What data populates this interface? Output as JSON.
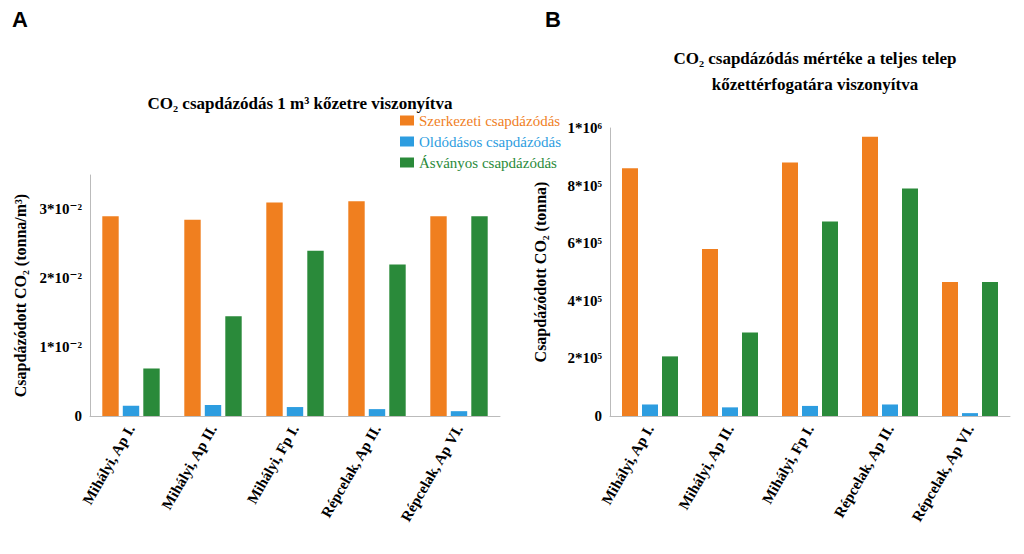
{
  "chart_data": [
    {
      "type": "bar",
      "annotations": [
        "A"
      ],
      "title": "CO₂ csapdázódás 1 m³ kőzetre viszonyítva",
      "y_label": "Csapdázódott CO₂ (tonna/m³)",
      "categories": [
        "Mihályi, Ap I.",
        "Mihályi, Ap II.",
        "Mihályi, Fp I.",
        "Répcelak, Ap II.",
        "Répcelak, Ap VI."
      ],
      "series": [
        {
          "name": "Szerkezeti csapdázódás",
          "color": "#f07f1f",
          "values": [
            0.029,
            0.0285,
            0.031,
            0.0312,
            0.029
          ]
        },
        {
          "name": "Oldódásos csapdázódás",
          "color": "#2d9de0",
          "values": [
            0.0015,
            0.0016,
            0.0013,
            0.001,
            0.0007
          ]
        },
        {
          "name": "Ásványos csapdázódás",
          "color": "#2a8a3a",
          "values": [
            0.0069,
            0.0145,
            0.024,
            0.022,
            0.029
          ]
        }
      ],
      "ylim": [
        0,
        0.035
      ],
      "yticks": [
        0,
        {
          "value": 0.01,
          "label": "1*10⁻²"
        },
        {
          "value": 0.02,
          "label": "2*10⁻²"
        },
        {
          "value": 0.03,
          "label": "3*10⁻²"
        }
      ],
      "grid": false,
      "legend": "top-right"
    },
    {
      "type": "bar",
      "annotations": [
        "B"
      ],
      "title": "CO₂ csapdázódás mértéke a teljes telep\nkőzettérfogatára viszonyítva",
      "y_label": "Csapdázódott CO₂ (tonna)",
      "categories": [
        "Mihályi, Ap I.",
        "Mihályi, Ap II.",
        "Mihályi, Fp I.",
        "Répcelak, Ap II.",
        "Répcelak, Ap VI."
      ],
      "series": [
        {
          "name": "Szerkezeti csapdázódás",
          "color": "#f07f1f",
          "values": [
            860000,
            580000,
            880000,
            970000,
            465000
          ]
        },
        {
          "name": "Oldódásos csapdázódás",
          "color": "#2d9de0",
          "values": [
            40000,
            30000,
            35000,
            40000,
            10000
          ]
        },
        {
          "name": "Ásványos csapdázódás",
          "color": "#2a8a3a",
          "values": [
            207000,
            290000,
            675000,
            790000,
            465000
          ]
        }
      ],
      "ylim": [
        0,
        1000000
      ],
      "yticks": [
        0,
        {
          "value": 200000,
          "label": "2*10⁵"
        },
        {
          "value": 400000,
          "label": "4*10⁵"
        },
        {
          "value": 600000,
          "label": "6*10⁵"
        },
        {
          "value": 800000,
          "label": "8*10⁵"
        },
        {
          "value": 1000000,
          "label": "1*10⁶"
        }
      ],
      "grid": false
    }
  ]
}
